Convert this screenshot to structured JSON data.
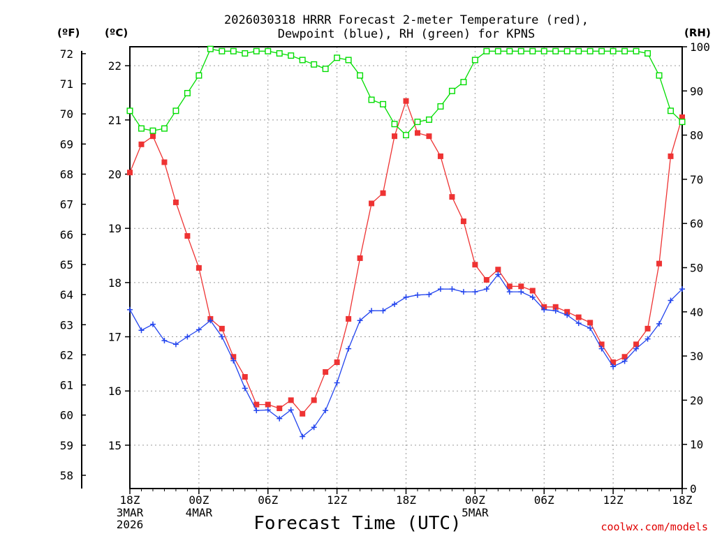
{
  "chart_data": {
    "type": "line",
    "title_line1": "2026030318 HRRR Forecast 2-meter Temperature (red),",
    "title_line2": "Dewpoint (blue), RH (green) for KPNS",
    "units": {
      "left_outer": "(ºF)",
      "left_inner": "(ºC)",
      "right": "(RH)"
    },
    "xlabel": "Forecast Time (UTC)",
    "credit": "coolwx.com/models",
    "x_range": [
      0,
      48
    ],
    "celsius_range": [
      14.2,
      22.35
    ],
    "rh_range": [
      0,
      100
    ],
    "x_ticks": [
      {
        "x": 0,
        "label": "18Z",
        "sub": [
          "3MAR",
          "2026"
        ]
      },
      {
        "x": 6,
        "label": "00Z",
        "sub": [
          "4MAR"
        ]
      },
      {
        "x": 12,
        "label": "06Z",
        "sub": []
      },
      {
        "x": 18,
        "label": "12Z",
        "sub": []
      },
      {
        "x": 24,
        "label": "18Z",
        "sub": []
      },
      {
        "x": 30,
        "label": "00Z",
        "sub": [
          "5MAR"
        ]
      },
      {
        "x": 36,
        "label": "06Z",
        "sub": []
      },
      {
        "x": 42,
        "label": "12Z",
        "sub": []
      },
      {
        "x": 48,
        "label": "18Z",
        "sub": []
      }
    ],
    "celsius_ticks": [
      "15",
      "16",
      "17",
      "18",
      "19",
      "20",
      "21",
      "22"
    ],
    "fahrenheit_ticks": [
      "58",
      "59",
      "60",
      "61",
      "62",
      "63",
      "64",
      "65",
      "66",
      "67",
      "68",
      "69",
      "70",
      "71",
      "72"
    ],
    "rh_ticks": [
      "0",
      "10",
      "20",
      "30",
      "40",
      "50",
      "60",
      "70",
      "80",
      "90",
      "100"
    ],
    "series": [
      {
        "name": "Temperature",
        "units": "C",
        "color": "#ee3333",
        "marker": "filled-square",
        "values": [
          20.03,
          20.55,
          20.7,
          20.22,
          19.48,
          18.86,
          18.27,
          17.33,
          17.15,
          16.63,
          16.26,
          15.75,
          15.75,
          15.68,
          15.83,
          15.58,
          15.83,
          16.35,
          16.53,
          17.33,
          18.45,
          19.46,
          19.65,
          20.7,
          21.35,
          20.76,
          20.7,
          20.33,
          19.58,
          19.13,
          18.33,
          18.05,
          18.24,
          17.93,
          17.93,
          17.85,
          17.55,
          17.55,
          17.46,
          17.36,
          17.26,
          16.86,
          16.53,
          16.63,
          16.86,
          17.15,
          18.35,
          20.33,
          21.05
        ]
      },
      {
        "name": "Dewpoint",
        "units": "C",
        "color": "#2244ee",
        "marker": "plus",
        "values": [
          17.5,
          17.12,
          17.23,
          16.93,
          16.86,
          17.0,
          17.13,
          17.3,
          17.0,
          16.56,
          16.05,
          15.64,
          15.65,
          15.49,
          15.65,
          15.16,
          15.33,
          15.64,
          16.15,
          16.78,
          17.3,
          17.48,
          17.48,
          17.6,
          17.73,
          17.77,
          17.78,
          17.88,
          17.88,
          17.83,
          17.83,
          17.88,
          18.15,
          17.83,
          17.83,
          17.73,
          17.5,
          17.48,
          17.4,
          17.25,
          17.16,
          16.78,
          16.45,
          16.55,
          16.78,
          16.96,
          17.24,
          17.67,
          17.88
        ]
      },
      {
        "name": "RH",
        "units": "%",
        "color": "#00dd00",
        "marker": "open-square",
        "values": [
          85.5,
          81.5,
          81.0,
          81.5,
          85.5,
          89.5,
          93.5,
          99.5,
          99.0,
          99.0,
          98.5,
          99.0,
          99.0,
          98.5,
          98.0,
          97.0,
          96.0,
          95.0,
          97.5,
          97.0,
          93.5,
          88.0,
          87.0,
          82.5,
          80.0,
          83.0,
          83.5,
          86.5,
          90.0,
          92.0,
          97.0,
          99.0,
          99.0,
          99.0,
          99.0,
          99.0,
          99.0,
          99.0,
          99.0,
          99.0,
          99.0,
          99.0,
          99.0,
          99.0,
          99.0,
          98.5,
          93.5,
          85.5,
          83.0
        ]
      }
    ]
  }
}
